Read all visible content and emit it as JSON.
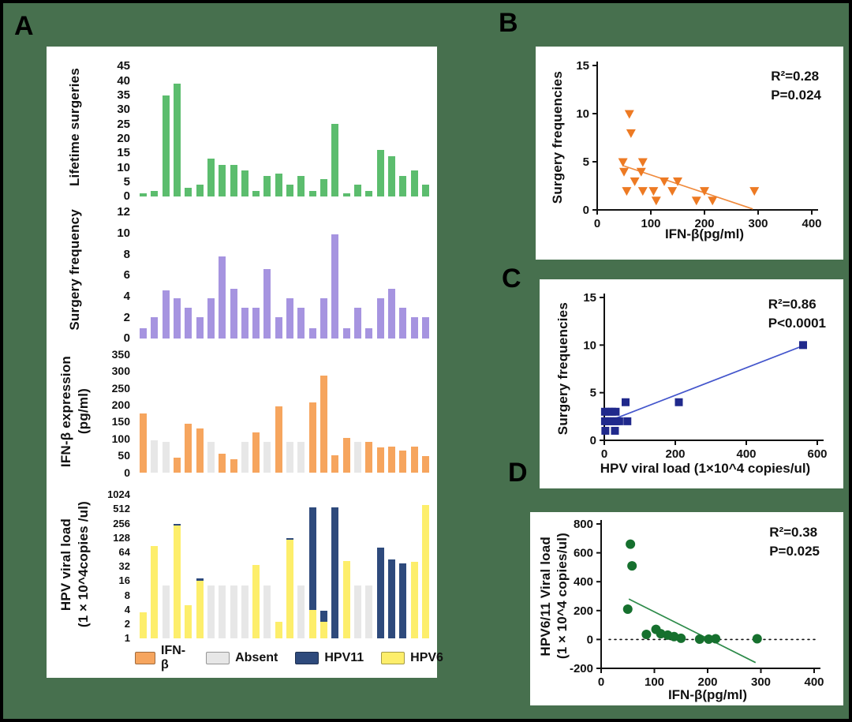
{
  "panel_labels": {
    "a": "A",
    "b": "B",
    "c": "C",
    "d": "D"
  },
  "colors": {
    "background": "#47704e",
    "card": "#ffffff",
    "series": {
      "Lifetime": "#5cbd6e",
      "Surgery": "#a694e0",
      "IFN-β": "#f6a55e",
      "Absent": "#e7e7e7",
      "HPV11": "#2e4a7c",
      "HPV6": "#fdee6b"
    }
  },
  "legend": {
    "items": [
      {
        "label": "IFN-β",
        "series": "IFN-β"
      },
      {
        "label": "Absent",
        "series": "Absent"
      },
      {
        "label": "HPV11",
        "series": "HPV11"
      },
      {
        "label": "HPV6",
        "series": "HPV6"
      }
    ]
  },
  "chart_data": [
    {
      "panel": "A1",
      "type": "bar",
      "title": "Lifetime surgeries",
      "title_lines": [
        "Lifetime surgeries"
      ],
      "ylim": [
        0,
        45
      ],
      "yticks": [
        0,
        5,
        10,
        15,
        20,
        25,
        30,
        35,
        40,
        45
      ],
      "series": "Lifetime",
      "values": [
        1,
        2,
        35,
        39,
        3,
        4,
        13,
        11,
        11,
        9,
        2,
        7,
        8,
        4,
        7,
        2,
        6,
        25,
        1,
        4,
        2,
        16,
        14,
        7,
        9,
        4
      ]
    },
    {
      "panel": "A2",
      "type": "bar",
      "title": "Surgery frequency",
      "title_lines": [
        "Surgery frequency"
      ],
      "ylim": [
        0,
        12
      ],
      "yticks": [
        0,
        2,
        4,
        6,
        8,
        10,
        12
      ],
      "series": "Surgery",
      "values": [
        1,
        2,
        4.6,
        3.8,
        2.9,
        2,
        3.8,
        7.8,
        4.7,
        2.9,
        2.9,
        6.6,
        2,
        3.8,
        2.9,
        1,
        3.8,
        9.9,
        1,
        2.9,
        1,
        3.8,
        4.7,
        2.9,
        2,
        2
      ]
    },
    {
      "panel": "A3",
      "type": "bar",
      "title": "IFN-β expression (pg/ml)",
      "title_lines": [
        "IFN-β expression",
        "(pg/ml)"
      ],
      "ylim": [
        0,
        350
      ],
      "yticks": [
        0,
        50,
        100,
        150,
        200,
        250,
        300,
        350
      ],
      "bars": [
        [
          175,
          "IFN-β"
        ],
        [
          95,
          "Absent"
        ],
        [
          92,
          "Absent"
        ],
        [
          45,
          "IFN-β"
        ],
        [
          145,
          "IFN-β"
        ],
        [
          130,
          "IFN-β"
        ],
        [
          92,
          "Absent"
        ],
        [
          55,
          "IFN-β"
        ],
        [
          40,
          "IFN-β"
        ],
        [
          92,
          "Absent"
        ],
        [
          118,
          "IFN-β"
        ],
        [
          92,
          "Absent"
        ],
        [
          195,
          "IFN-β"
        ],
        [
          92,
          "Absent"
        ],
        [
          92,
          "Absent"
        ],
        [
          207,
          "IFN-β"
        ],
        [
          287,
          "IFN-β"
        ],
        [
          52,
          "IFN-β"
        ],
        [
          103,
          "IFN-β"
        ],
        [
          92,
          "Absent"
        ],
        [
          92,
          "IFN-β"
        ],
        [
          75,
          "IFN-β"
        ],
        [
          78,
          "IFN-β"
        ],
        [
          65,
          "IFN-β"
        ],
        [
          78,
          "IFN-β"
        ],
        [
          48,
          "IFN-β"
        ]
      ]
    },
    {
      "panel": "A4",
      "type": "stacked-bar-log2",
      "title": "HPV viral load (1×10^4copies /ul)",
      "title_lines": [
        "HPV viral load",
        "(1×10^4copies /ul)"
      ],
      "log2": true,
      "ylim": [
        1,
        1024
      ],
      "yticks": [
        1,
        2,
        4,
        8,
        16,
        32,
        64,
        128,
        256,
        512,
        1024
      ],
      "bars": [
        [
          [
            3.5,
            "HPV6"
          ]
        ],
        [
          [
            85,
            "HPV6"
          ]
        ],
        [
          [
            13,
            "Absent"
          ]
        ],
        [
          [
            230,
            "HPV6"
          ],
          [
            250,
            "HPV11"
          ]
        ],
        [
          [
            5,
            "HPV6"
          ]
        ],
        [
          [
            16,
            "HPV6"
          ],
          [
            18,
            "HPV11"
          ]
        ],
        [
          [
            13,
            "Absent"
          ]
        ],
        [
          [
            13,
            "Absent"
          ]
        ],
        [
          [
            13,
            "Absent"
          ]
        ],
        [
          [
            13,
            "Absent"
          ]
        ],
        [
          [
            35,
            "HPV6"
          ]
        ],
        [
          [
            13,
            "Absent"
          ]
        ],
        [
          [
            2.2,
            "HPV6"
          ]
        ],
        [
          [
            115,
            "HPV6"
          ],
          [
            128,
            "HPV11"
          ]
        ],
        [
          [
            13,
            "Absent"
          ]
        ],
        [
          [
            4,
            "HPV6"
          ],
          [
            560,
            "HPV11"
          ]
        ],
        [
          [
            2.2,
            "HPV6"
          ],
          [
            3.8,
            "HPV11"
          ]
        ],
        [
          [
            560,
            "HPV11"
          ]
        ],
        [
          [
            42,
            "HPV6"
          ]
        ],
        [
          [
            13,
            "Absent"
          ]
        ],
        [
          [
            13,
            "Absent"
          ]
        ],
        [
          [
            80,
            "HPV11"
          ]
        ],
        [
          [
            45,
            "HPV11"
          ]
        ],
        [
          [
            38,
            "HPV11"
          ]
        ],
        [
          [
            40,
            "HPV6"
          ]
        ],
        [
          [
            620,
            "HPV6"
          ]
        ]
      ]
    },
    {
      "panel": "B",
      "type": "scatter",
      "marker": "triangle-down",
      "marker_color": "#ed7a23",
      "trend_color": "#f08a3c",
      "xlabel": "IFN-β(pg/ml)",
      "ylabel": "Surgery frequencies",
      "xlim": [
        0,
        400
      ],
      "xticks": [
        0,
        100,
        200,
        300,
        400
      ],
      "ylim": [
        0,
        15
      ],
      "yticks": [
        0,
        5,
        10,
        15
      ],
      "points": [
        [
          60,
          10
        ],
        [
          63,
          8
        ],
        [
          48,
          5
        ],
        [
          85,
          5
        ],
        [
          50,
          4
        ],
        [
          82,
          4
        ],
        [
          70,
          3
        ],
        [
          125,
          3
        ],
        [
          150,
          3
        ],
        [
          55,
          2
        ],
        [
          85,
          2
        ],
        [
          105,
          2
        ],
        [
          140,
          2
        ],
        [
          200,
          2
        ],
        [
          293,
          2
        ],
        [
          110,
          1
        ],
        [
          185,
          1
        ],
        [
          215,
          1
        ]
      ],
      "trend": [
        [
          48,
          4.6
        ],
        [
          290,
          0.1
        ]
      ],
      "annotations": [
        "R²=0.28",
        "P=0.024"
      ]
    },
    {
      "panel": "C",
      "type": "scatter",
      "marker": "square",
      "marker_color": "#20298c",
      "trend_color": "#4456cc",
      "xlabel": "HPV viral load (1×10^4 copies/ul)",
      "ylabel": "Surgery frequencies",
      "xlim": [
        0,
        600
      ],
      "xticks": [
        0,
        200,
        400,
        600
      ],
      "ylim": [
        0,
        15
      ],
      "yticks": [
        0,
        5,
        10,
        15
      ],
      "points": [
        [
          2,
          3
        ],
        [
          12,
          3
        ],
        [
          22,
          3
        ],
        [
          32,
          3
        ],
        [
          60,
          4
        ],
        [
          2,
          2
        ],
        [
          10,
          2
        ],
        [
          18,
          2
        ],
        [
          26,
          2
        ],
        [
          34,
          2
        ],
        [
          42,
          2
        ],
        [
          65,
          2
        ],
        [
          3,
          1
        ],
        [
          30,
          1
        ],
        [
          210,
          4
        ],
        [
          560,
          10
        ]
      ],
      "trend": [
        [
          25,
          2.2
        ],
        [
          558,
          9.9
        ]
      ],
      "annotations": [
        "R²=0.86",
        "P<0.0001"
      ]
    },
    {
      "panel": "D",
      "type": "scatter",
      "marker": "circle",
      "marker_color": "#16702e",
      "trend_color": "#2e8b4a",
      "xlabel": "IFN-β(pg/ml)",
      "ylabel_lines": [
        "HPV6/11 Viral load",
        "(1×10^4 copies/ul)"
      ],
      "xlim": [
        0,
        400
      ],
      "xticks": [
        0,
        100,
        200,
        300,
        400
      ],
      "ylim": [
        -200,
        800
      ],
      "yticks": [
        -200,
        0,
        200,
        400,
        600,
        800
      ],
      "zero_line": true,
      "points": [
        [
          55,
          660
        ],
        [
          58,
          510
        ],
        [
          50,
          210
        ],
        [
          85,
          35
        ],
        [
          103,
          70
        ],
        [
          112,
          40
        ],
        [
          125,
          30
        ],
        [
          137,
          20
        ],
        [
          150,
          8
        ],
        [
          185,
          2
        ],
        [
          202,
          2
        ],
        [
          215,
          5
        ],
        [
          293,
          5
        ]
      ],
      "trend": [
        [
          52,
          280
        ],
        [
          290,
          -160
        ]
      ],
      "annotations": [
        "R²=0.38",
        "P=0.025"
      ]
    }
  ]
}
